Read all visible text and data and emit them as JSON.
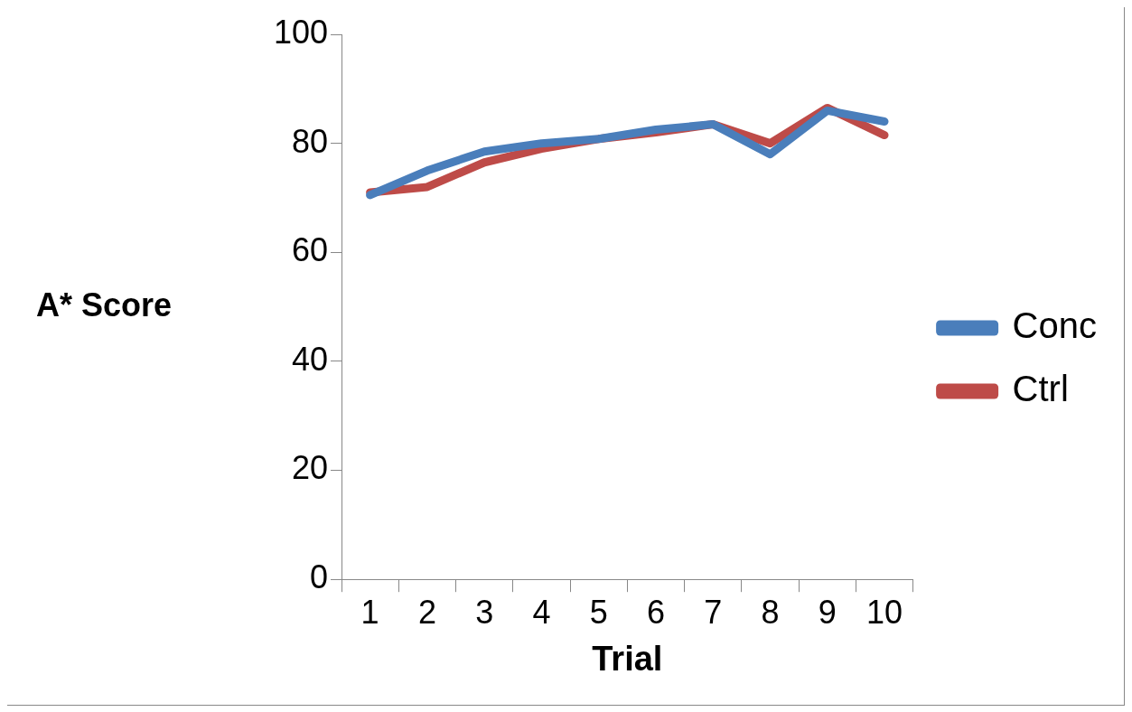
{
  "chart_data": {
    "type": "line",
    "xlabel": "Trial",
    "ylabel": "A* Score",
    "categories": [
      "1",
      "2",
      "3",
      "4",
      "5",
      "6",
      "7",
      "8",
      "9",
      "10"
    ],
    "series": [
      {
        "name": "Conc",
        "color": "#4a7ebb",
        "values": [
          70.5,
          75,
          78.5,
          80,
          80.8,
          82.5,
          83.5,
          78,
          86,
          84
        ]
      },
      {
        "name": "Ctrl",
        "color": "#be4b48",
        "values": [
          71,
          72,
          76.5,
          79,
          80.8,
          82,
          83.5,
          80,
          86.5,
          81.5
        ]
      }
    ],
    "ylim": [
      0,
      100
    ],
    "yticks": [
      0,
      20,
      40,
      60,
      80,
      100
    ],
    "grid": false,
    "legend": "right",
    "marker": "none",
    "line_style": "solid"
  }
}
